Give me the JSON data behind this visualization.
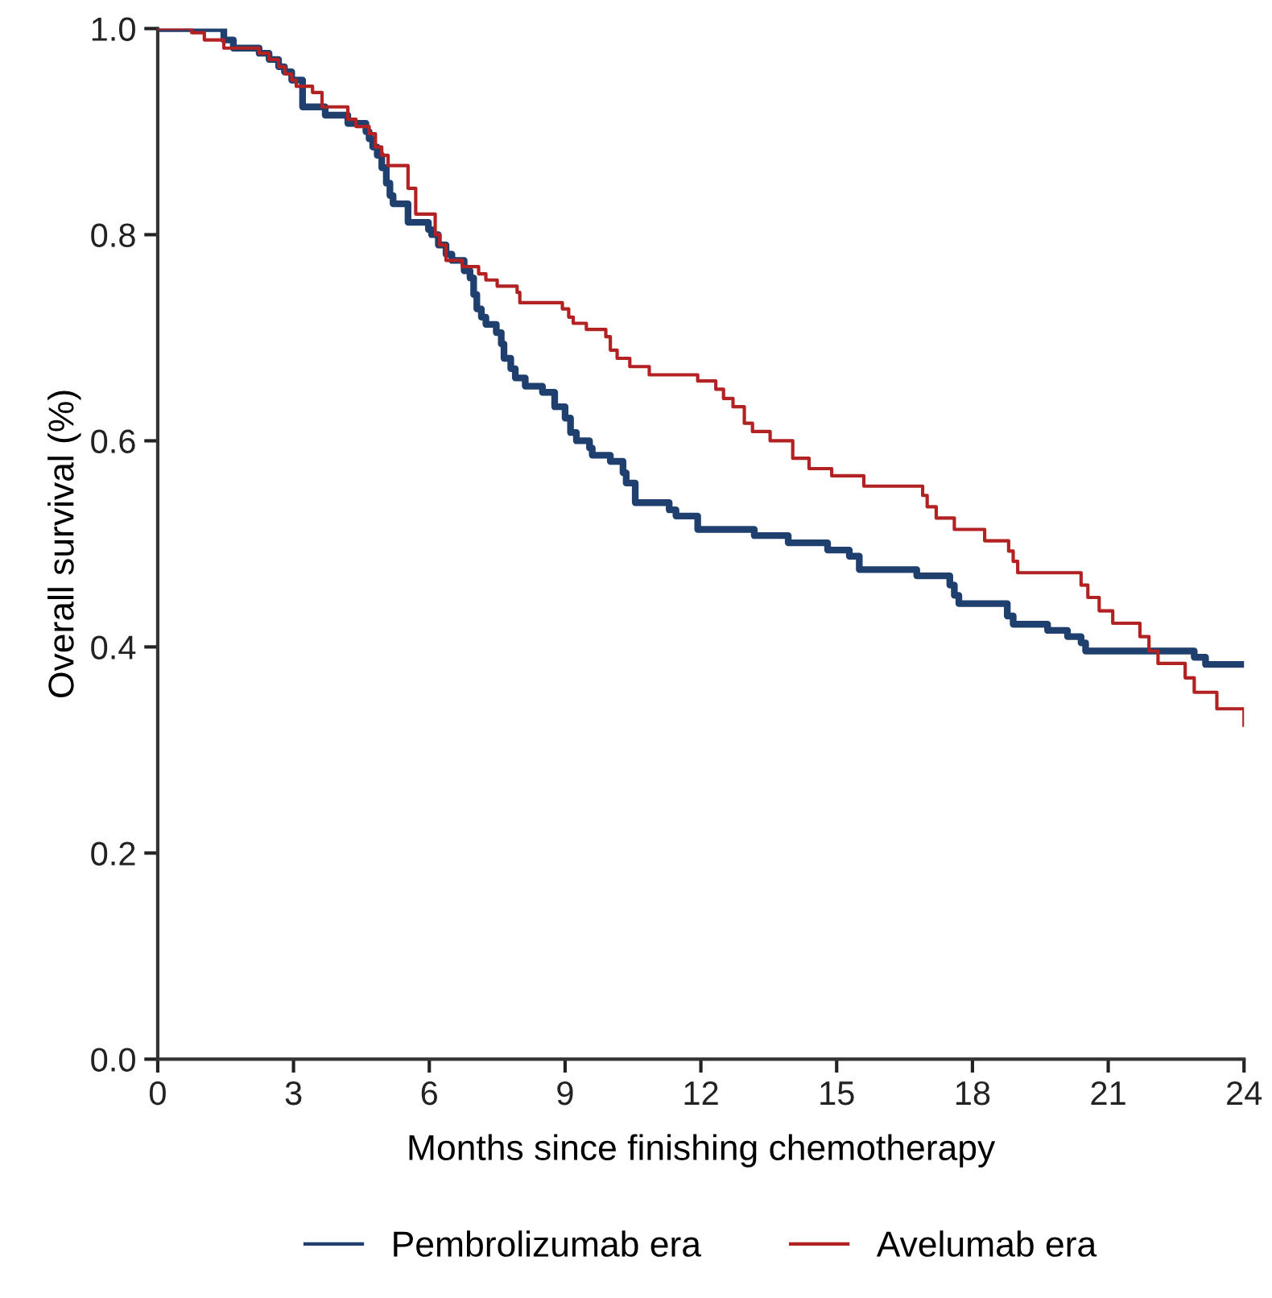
{
  "chart_data": {
    "type": "step",
    "xlabel": "Months since finishing chemotherapy",
    "ylabel": "Overall survival (%)",
    "xlim": [
      0,
      24
    ],
    "xticks": [
      0,
      3,
      6,
      9,
      12,
      15,
      18,
      21,
      24
    ],
    "ylim": [
      0,
      1.0
    ],
    "yticks": [
      {
        "value": 0,
        "label": "0.0"
      },
      {
        "value": 0.2,
        "label": "0.2"
      },
      {
        "value": 0.4,
        "label": "0.4"
      },
      {
        "value": 0.6,
        "label": "0.6"
      },
      {
        "value": 0.8,
        "label": "0.8"
      },
      {
        "value": 1.0,
        "label": "1.0"
      }
    ],
    "grid": false,
    "legend": "bottom",
    "line_style": "solid",
    "marker": "none",
    "series": [
      {
        "name": "Pembrolizumab era",
        "color": "#1f3f6e",
        "x": [
          0,
          1.46,
          1.67,
          2.24,
          2.46,
          2.67,
          2.8,
          2.96,
          3.2,
          3.7,
          4.2,
          4.6,
          4.67,
          4.75,
          4.85,
          4.95,
          5.05,
          5.13,
          5.2,
          5.53,
          5.98,
          6.05,
          6.2,
          6.37,
          6.5,
          6.77,
          6.9,
          6.98,
          7.05,
          7.15,
          7.25,
          7.48,
          7.59,
          7.65,
          7.8,
          7.9,
          8.12,
          8.5,
          8.77,
          9.0,
          9.12,
          9.25,
          9.54,
          9.6,
          10.0,
          10.28,
          10.35,
          10.55,
          11.3,
          11.45,
          11.93,
          13.18,
          13.93,
          14.8,
          15.28,
          15.5,
          16.77,
          17.5,
          17.6,
          17.7,
          18.77,
          18.9,
          19.66,
          20.1,
          20.4,
          20.5,
          22.9,
          23.15,
          24.0
        ],
        "values": [
          1.0,
          0.989,
          0.981,
          0.976,
          0.97,
          0.963,
          0.958,
          0.95,
          0.924,
          0.916,
          0.908,
          0.9,
          0.893,
          0.885,
          0.877,
          0.865,
          0.85,
          0.838,
          0.83,
          0.812,
          0.805,
          0.8,
          0.79,
          0.781,
          0.775,
          0.765,
          0.758,
          0.742,
          0.728,
          0.72,
          0.713,
          0.705,
          0.694,
          0.68,
          0.67,
          0.661,
          0.653,
          0.647,
          0.633,
          0.622,
          0.608,
          0.6,
          0.593,
          0.586,
          0.58,
          0.569,
          0.559,
          0.54,
          0.533,
          0.527,
          0.514,
          0.508,
          0.501,
          0.494,
          0.488,
          0.475,
          0.469,
          0.46,
          0.45,
          0.442,
          0.43,
          0.422,
          0.416,
          0.41,
          0.404,
          0.396,
          0.39,
          0.383,
          0.383
        ]
      },
      {
        "name": "Avelumab era",
        "color": "#b22222",
        "x": [
          0,
          0.75,
          1.03,
          1.46,
          2.24,
          2.46,
          2.67,
          2.81,
          2.96,
          3.06,
          3.42,
          3.63,
          4.2,
          4.38,
          4.67,
          4.81,
          4.95,
          5.09,
          5.53,
          5.7,
          6.13,
          6.23,
          6.37,
          6.73,
          7.09,
          7.25,
          7.5,
          7.94,
          8.0,
          8.94,
          9.08,
          9.18,
          9.47,
          9.9,
          10.0,
          10.15,
          10.43,
          10.86,
          11.93,
          12.33,
          12.5,
          12.71,
          12.96,
          13.14,
          13.53,
          14.03,
          14.39,
          14.89,
          15.6,
          16.9,
          17.0,
          17.2,
          17.6,
          18.27,
          18.8,
          18.9,
          19.0,
          20.4,
          20.55,
          20.8,
          21.1,
          21.7,
          21.9,
          22.1,
          22.7,
          22.9,
          23.4,
          24.0
        ],
        "values": [
          1.0,
          0.996,
          0.989,
          0.981,
          0.976,
          0.97,
          0.963,
          0.956,
          0.95,
          0.944,
          0.938,
          0.924,
          0.912,
          0.905,
          0.898,
          0.885,
          0.877,
          0.867,
          0.845,
          0.82,
          0.8,
          0.79,
          0.775,
          0.769,
          0.762,
          0.756,
          0.75,
          0.744,
          0.734,
          0.728,
          0.72,
          0.714,
          0.708,
          0.701,
          0.688,
          0.68,
          0.672,
          0.664,
          0.658,
          0.65,
          0.641,
          0.633,
          0.617,
          0.609,
          0.6,
          0.583,
          0.573,
          0.566,
          0.556,
          0.547,
          0.536,
          0.525,
          0.514,
          0.503,
          0.493,
          0.483,
          0.472,
          0.46,
          0.448,
          0.435,
          0.423,
          0.41,
          0.396,
          0.384,
          0.37,
          0.356,
          0.34,
          0.324
        ]
      }
    ]
  }
}
